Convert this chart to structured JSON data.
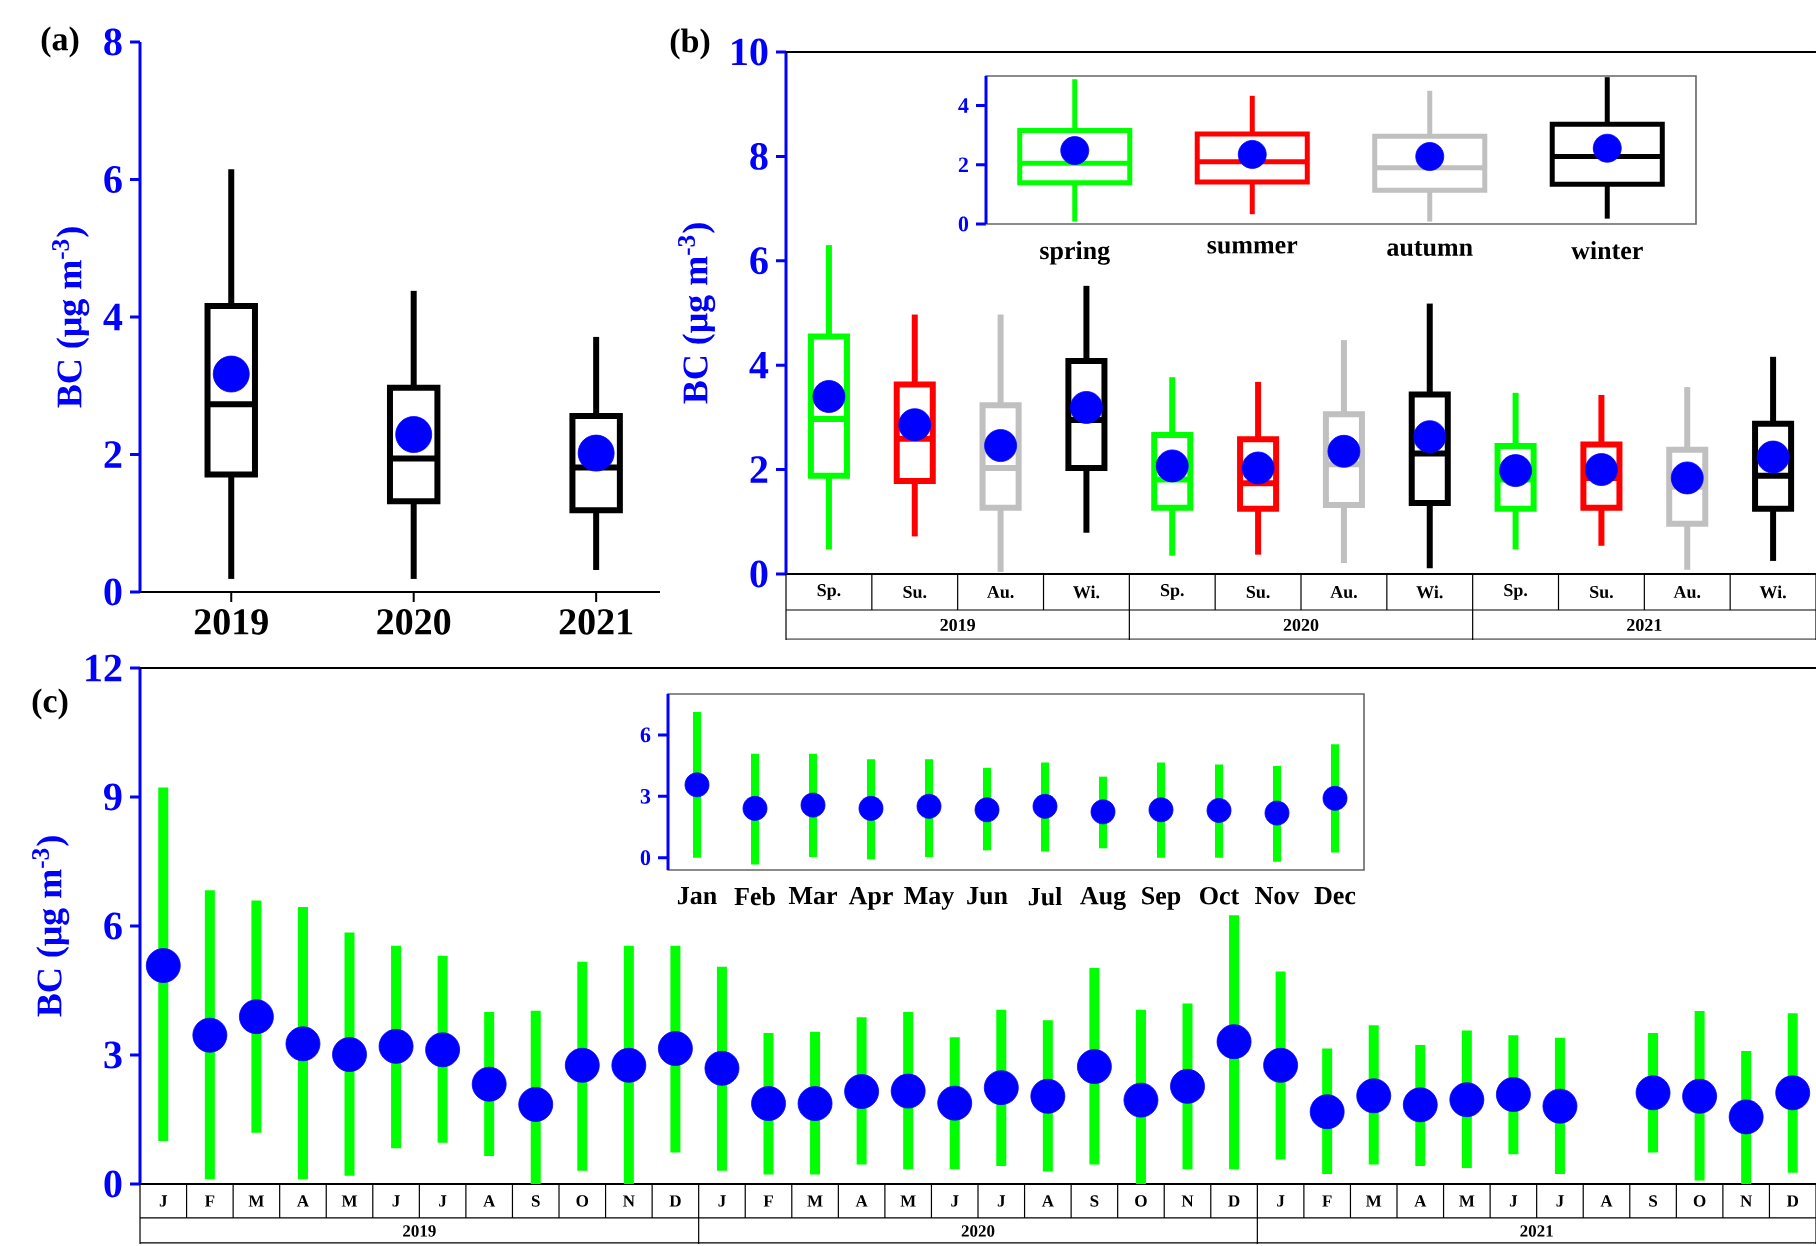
{
  "chart_data": [
    {
      "type": "box",
      "title": "(a)",
      "ylabel": "BC (μg m$^{-3}$)",
      "categories": [
        "2019",
        "2020",
        "2021"
      ],
      "ylim": [
        0,
        8
      ],
      "yticks": [
        0,
        2,
        4,
        6,
        8
      ],
      "marker": "circle",
      "series": [
        {
          "color": "#000000",
          "boxes": [
            {
              "low": 0.19,
              "q1": 1.71,
              "median": 2.73,
              "q3": 4.16,
              "high": 6.15
            },
            {
              "low": 0.19,
              "q1": 1.32,
              "median": 1.94,
              "q3": 2.97,
              "high": 4.38
            },
            {
              "low": 0.32,
              "q1": 1.19,
              "median": 1.81,
              "q3": 2.56,
              "high": 3.71
            }
          ]
        },
        {
          "type": "scatter",
          "color": "#0000ff",
          "values": [
            3.17,
            2.29,
            2.02
          ]
        }
      ]
    },
    {
      "type": "box",
      "title": "(b)",
      "ylabel": "BC (μg m$^{-3}$)",
      "categories": [
        "Sp.",
        "Su.",
        "Au.",
        "Wi.",
        "Sp.",
        "Su.",
        "Au.",
        "Wi.",
        "Sp.",
        "Su.",
        "Au.",
        "Wi."
      ],
      "annotations": [
        "2019",
        "2020",
        "2021"
      ],
      "ylim": [
        0,
        10
      ],
      "yticks": [
        0,
        2,
        4,
        6,
        8,
        10
      ],
      "marker": "circle",
      "series": [
        {
          "colors": [
            "#00ff00",
            "#ff0000",
            "#c0c0c0",
            "#000000",
            "#00ff00",
            "#ff0000",
            "#c0c0c0",
            "#000000",
            "#00ff00",
            "#ff0000",
            "#c0c0c0",
            "#000000"
          ],
          "boxes": [
            {
              "low": 0.47,
              "q1": 1.88,
              "median": 2.97,
              "q3": 4.55,
              "high": 6.3
            },
            {
              "low": 0.72,
              "q1": 1.78,
              "median": 2.59,
              "q3": 3.63,
              "high": 4.97
            },
            {
              "low": 0.04,
              "q1": 1.27,
              "median": 2.03,
              "q3": 3.23,
              "high": 4.97
            },
            {
              "low": 0.79,
              "q1": 2.03,
              "median": 2.95,
              "q3": 4.08,
              "high": 5.52
            },
            {
              "low": 0.35,
              "q1": 1.27,
              "median": 1.81,
              "q3": 2.66,
              "high": 3.77
            },
            {
              "low": 0.37,
              "q1": 1.25,
              "median": 1.74,
              "q3": 2.58,
              "high": 3.68
            },
            {
              "low": 0.21,
              "q1": 1.32,
              "median": 2.1,
              "q3": 3.06,
              "high": 4.48
            },
            {
              "low": 0.11,
              "q1": 1.36,
              "median": 2.31,
              "q3": 3.44,
              "high": 5.18
            },
            {
              "low": 0.47,
              "q1": 1.25,
              "median": 1.81,
              "q3": 2.45,
              "high": 3.47
            },
            {
              "low": 0.54,
              "q1": 1.27,
              "median": 1.84,
              "q3": 2.48,
              "high": 3.43
            },
            {
              "low": 0.08,
              "q1": 0.96,
              "median": 1.67,
              "q3": 2.38,
              "high": 3.58
            },
            {
              "low": 0.25,
              "q1": 1.25,
              "median": 1.88,
              "q3": 2.88,
              "high": 4.16
            }
          ]
        },
        {
          "type": "scatter",
          "color": "#0000ff",
          "values": [
            3.4,
            2.86,
            2.46,
            3.19,
            2.07,
            2.03,
            2.35,
            2.63,
            1.98,
            2.0,
            1.84,
            2.24
          ]
        }
      ]
    },
    {
      "type": "box",
      "categories": [
        "spring",
        "summer",
        "autumn",
        "winter"
      ],
      "ylim": [
        0,
        5
      ],
      "yticks": [
        0,
        2,
        4
      ],
      "marker": "circle",
      "series": [
        {
          "colors": [
            "#00ff00",
            "#ff0000",
            "#c0c0c0",
            "#000000"
          ],
          "boxes": [
            {
              "low": 0.08,
              "q1": 1.39,
              "median": 2.05,
              "q3": 3.16,
              "high": 4.89
            },
            {
              "low": 0.33,
              "q1": 1.42,
              "median": 2.1,
              "q3": 3.04,
              "high": 4.33
            },
            {
              "low": 0.08,
              "q1": 1.14,
              "median": 1.9,
              "q3": 2.96,
              "high": 4.5
            },
            {
              "low": 0.18,
              "q1": 1.34,
              "median": 2.28,
              "q3": 3.37,
              "high": 4.96
            }
          ]
        },
        {
          "type": "scatter",
          "color": "#0000ff",
          "values": [
            2.48,
            2.35,
            2.28,
            2.56
          ]
        }
      ]
    },
    {
      "type": "bar",
      "title": "(c)",
      "ylabel": "BC (μg m$^{-3}$)",
      "categories": [
        "J",
        "F",
        "M",
        "A",
        "M",
        "J",
        "J",
        "A",
        "S",
        "O",
        "N",
        "D",
        "J",
        "F",
        "M",
        "A",
        "M",
        "J",
        "J",
        "A",
        "S",
        "O",
        "N",
        "D",
        "J",
        "F",
        "M",
        "A",
        "M",
        "J",
        "J",
        "A",
        "S",
        "O",
        "N",
        "D"
      ],
      "annotations": [
        "2019",
        "2020",
        "2021"
      ],
      "ylim": [
        0,
        12
      ],
      "yticks": [
        0,
        3,
        6,
        9,
        12
      ],
      "marker": "circle",
      "series": [
        {
          "color": "#00ff00",
          "base": [
            1.0,
            0.11,
            1.19,
            0.11,
            0.19,
            0.83,
            0.96,
            0.65,
            0,
            0.31,
            0,
            0.73,
            0.31,
            0.22,
            0.22,
            0.45,
            0.34,
            0.34,
            0.42,
            0.29,
            0.45,
            0,
            0.34,
            0.34,
            0.57,
            0.23,
            0.45,
            0.42,
            0.37,
            0.69,
            0.23,
            null,
            0.73,
            0.08,
            0,
            0.26
          ],
          "values": [
            8.22,
            6.72,
            5.4,
            6.33,
            5.66,
            4.71,
            4.35,
            3.35,
            4.03,
            4.86,
            5.54,
            4.81,
            4.74,
            3.29,
            3.32,
            3.43,
            3.66,
            3.07,
            3.63,
            3.52,
            4.57,
            4.05,
            3.86,
            5.91,
            4.37,
            2.92,
            3.24,
            2.81,
            3.2,
            2.77,
            3.17,
            null,
            2.78,
            3.94,
            3.09,
            3.71
          ]
        },
        {
          "type": "scatter",
          "color": "#0000ff",
          "values": [
            5.08,
            3.46,
            3.89,
            3.26,
            3.01,
            3.2,
            3.12,
            2.32,
            1.85,
            2.76,
            2.76,
            3.15,
            2.69,
            1.87,
            1.87,
            2.15,
            2.16,
            1.88,
            2.24,
            2.04,
            2.73,
            1.95,
            2.27,
            3.31,
            2.76,
            1.68,
            2.05,
            1.84,
            1.96,
            2.08,
            1.81,
            null,
            2.12,
            2.04,
            1.56,
            2.12
          ]
        }
      ]
    },
    {
      "type": "bar",
      "categories": [
        "Jan",
        "Feb",
        "Mar",
        "Apr",
        "May",
        "Jun",
        "Jul",
        "Aug",
        "Sep",
        "Oct",
        "Nov",
        "Dec"
      ],
      "ylim": [
        -0.6,
        8
      ],
      "yticks": [
        0,
        3,
        6
      ],
      "marker": "circle",
      "series": [
        {
          "color": "#00ff00",
          "base": [
            0,
            -0.33,
            0.03,
            -0.07,
            0.03,
            0.36,
            0.3,
            0.46,
            0,
            0,
            -0.2,
            0.26
          ],
          "values": [
            7.12,
            5.41,
            5.05,
            4.88,
            4.78,
            4.03,
            4.35,
            3.5,
            4.65,
            4.55,
            4.68,
            5.28
          ]
        },
        {
          "type": "scatter",
          "color": "#0000ff",
          "values": [
            3.56,
            2.41,
            2.57,
            2.41,
            2.51,
            2.34,
            2.51,
            2.24,
            2.34,
            2.31,
            2.18,
            2.9
          ]
        }
      ]
    }
  ]
}
